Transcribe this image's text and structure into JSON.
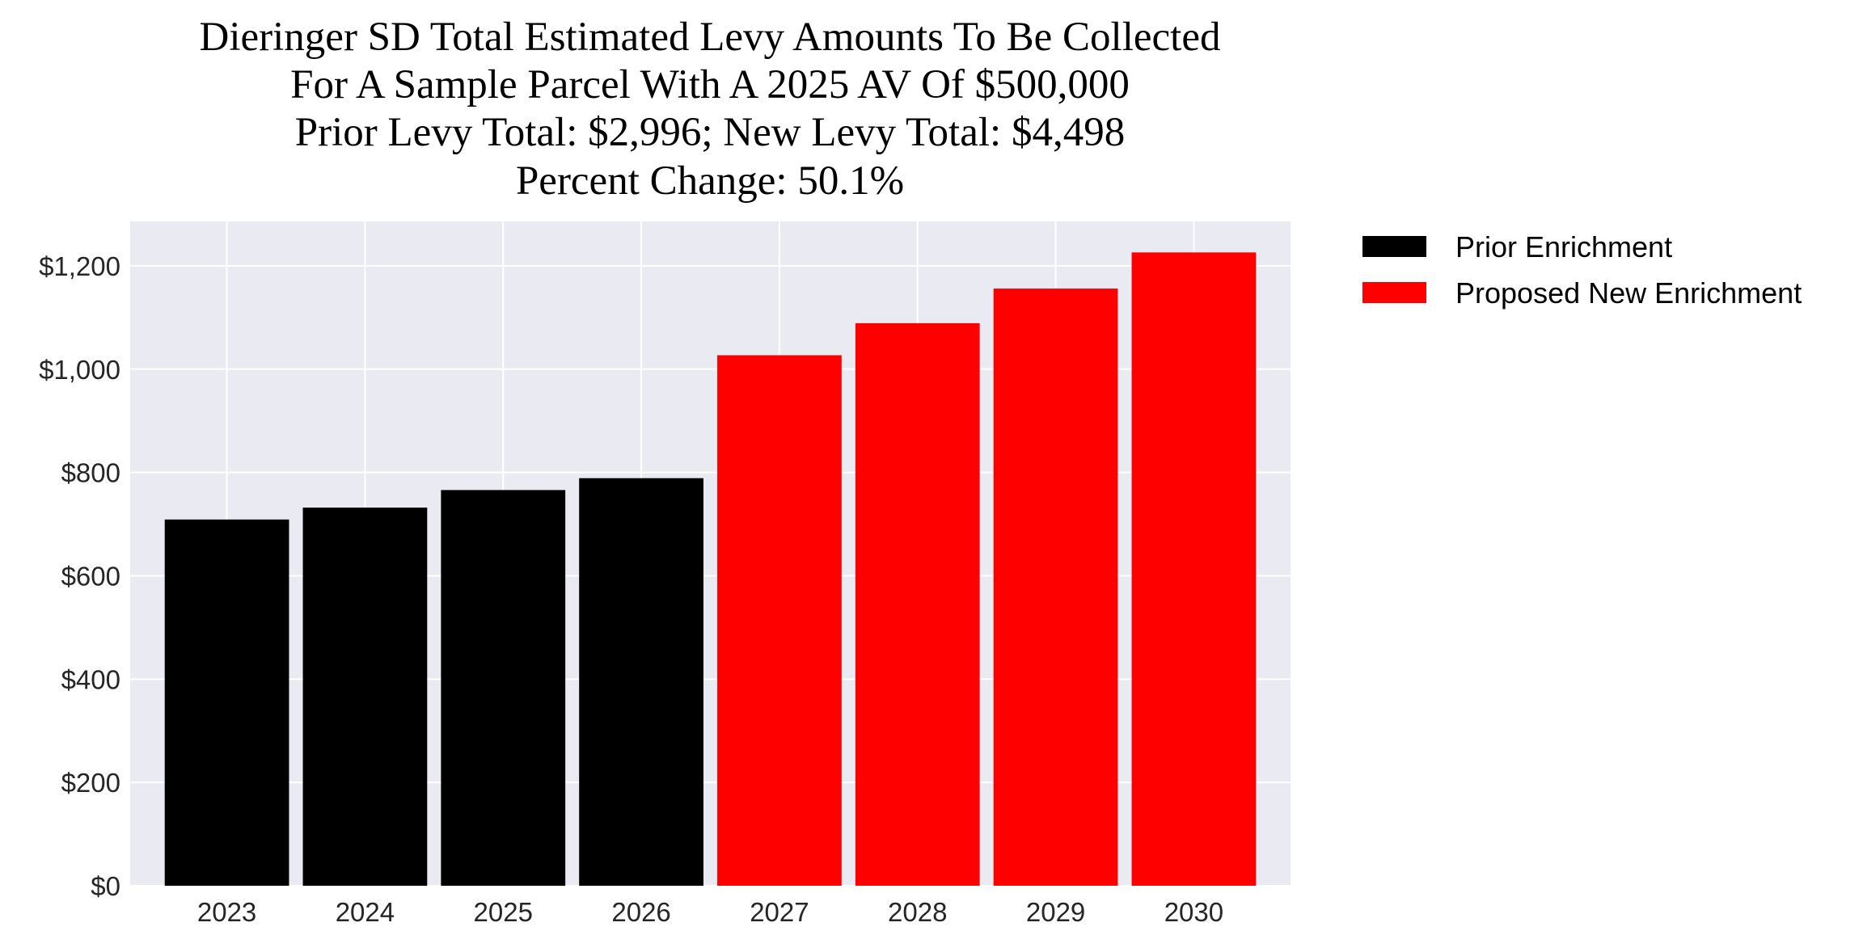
{
  "chart_data": {
    "type": "bar",
    "title": [
      "Dieringer SD Total Estimated Levy Amounts To Be Collected",
      "For A Sample Parcel With A 2025 AV Of $500,000",
      "Prior Levy Total:  $2,996; New Levy Total: $4,498",
      "Percent Change: 50.1%"
    ],
    "xlabel": "",
    "ylabel": "",
    "categories": [
      "2023",
      "2024",
      "2025",
      "2026",
      "2027",
      "2028",
      "2029",
      "2030"
    ],
    "values": [
      709,
      732,
      766,
      789,
      1027,
      1089,
      1156,
      1226
    ],
    "bar_series": [
      "Prior Enrichment",
      "Prior Enrichment",
      "Prior Enrichment",
      "Prior Enrichment",
      "Proposed New Enrichment",
      "Proposed New Enrichment",
      "Proposed New Enrichment",
      "Proposed New Enrichment"
    ],
    "ylim": [
      0,
      1286
    ],
    "yticks": [
      0,
      200,
      400,
      600,
      800,
      1000,
      1200
    ],
    "ytick_labels": [
      "$0",
      "$200",
      "$400",
      "$600",
      "$800",
      "$1,000",
      "$1,200"
    ],
    "grid": true,
    "legend_placement": "outside top-right",
    "series": [
      {
        "name": "Prior Enrichment",
        "color": "#000000"
      },
      {
        "name": "Proposed New Enrichment",
        "color": "#ff0000"
      }
    ],
    "background": "#eaeaf2"
  }
}
